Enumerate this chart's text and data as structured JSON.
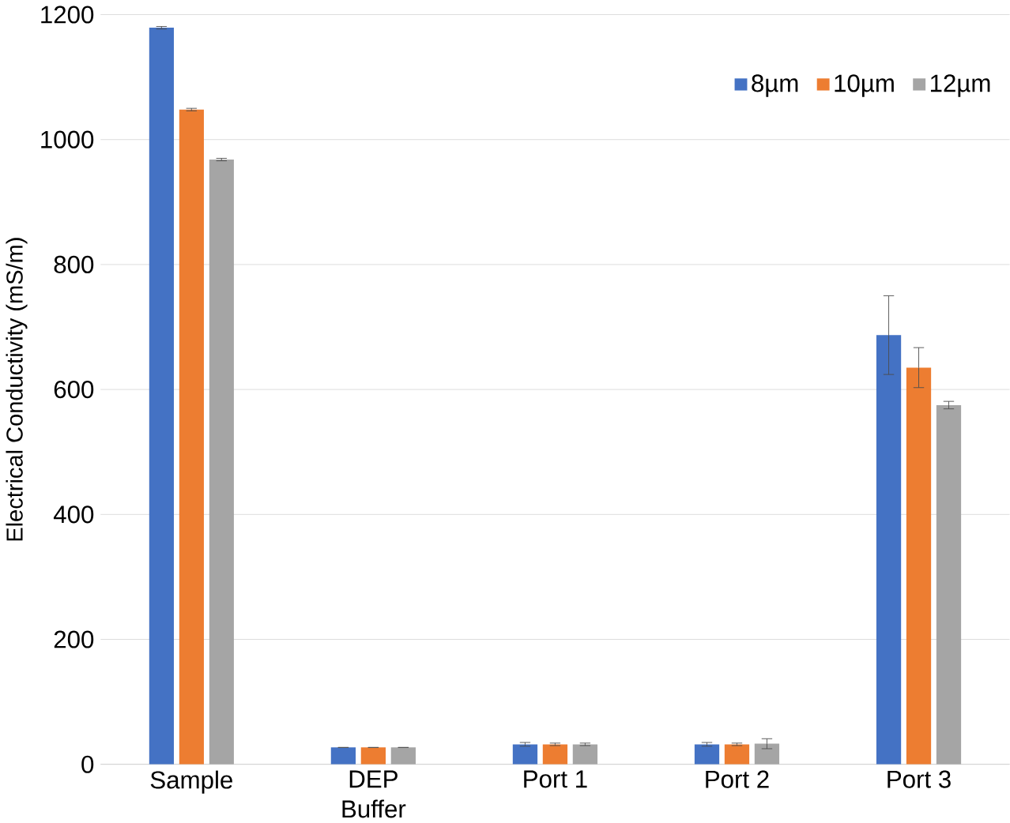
{
  "chart_data": {
    "type": "bar",
    "ylabel": "Electrical Conductivity  (mS/m)",
    "categories": [
      "Sample",
      "DEP\nBuffer",
      "Port 1",
      "Port 2",
      "Port 3"
    ],
    "series": [
      {
        "name": "8µm",
        "color": "#4472c4",
        "values": [
          1179,
          27,
          32,
          32,
          687
        ],
        "errors": [
          2,
          null,
          3,
          3,
          63
        ]
      },
      {
        "name": "10µm",
        "color": "#ed7d31",
        "values": [
          1048,
          27,
          32,
          32,
          635
        ],
        "errors": [
          2,
          null,
          2,
          2,
          32
        ]
      },
      {
        "name": "12µm",
        "color": "#a5a5a5",
        "values": [
          968,
          27,
          32,
          33,
          575
        ],
        "errors": [
          2,
          null,
          2,
          8,
          6
        ]
      }
    ],
    "ylim": [
      0,
      1200
    ],
    "yticks": [
      0,
      200,
      400,
      600,
      800,
      1000,
      1200
    ],
    "grid": "y",
    "legend": "top right"
  }
}
